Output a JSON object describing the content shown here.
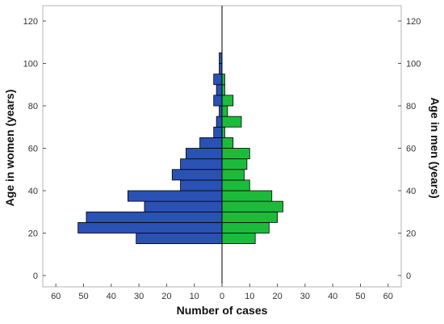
{
  "chart_data": {
    "type": "bar",
    "orientation": "horizontal",
    "layout": "population-pyramid",
    "xlabel": "Number of cases",
    "ylabel_left": "Age in women (years)",
    "ylabel_right": "Age in men (years)",
    "x_ticks": [
      "60",
      "50",
      "40",
      "30",
      "20",
      "10",
      "0",
      "10",
      "20",
      "30",
      "40",
      "50",
      "60"
    ],
    "y_ticks": [
      "0",
      "20",
      "40",
      "60",
      "80",
      "100",
      "120"
    ],
    "xlim": [
      -60,
      60
    ],
    "ylim": [
      -5,
      125
    ],
    "bin_width": 5,
    "age_bins": [
      15,
      20,
      25,
      30,
      35,
      40,
      45,
      50,
      55,
      60,
      65,
      70,
      75,
      80,
      85,
      90,
      95,
      100
    ],
    "series": [
      {
        "name": "Women",
        "color": "#2a52b4",
        "values": [
          31,
          52,
          49,
          28,
          34,
          15,
          18,
          15,
          13,
          8,
          3,
          2,
          1,
          3,
          2,
          3,
          1,
          1
        ]
      },
      {
        "name": "Men",
        "color": "#1dbb3c",
        "values": [
          12,
          17,
          20,
          22,
          18,
          10,
          8,
          9,
          10,
          4,
          1,
          7,
          2,
          4,
          1,
          1,
          0,
          0
        ]
      }
    ],
    "grid": false,
    "legend": "none"
  }
}
